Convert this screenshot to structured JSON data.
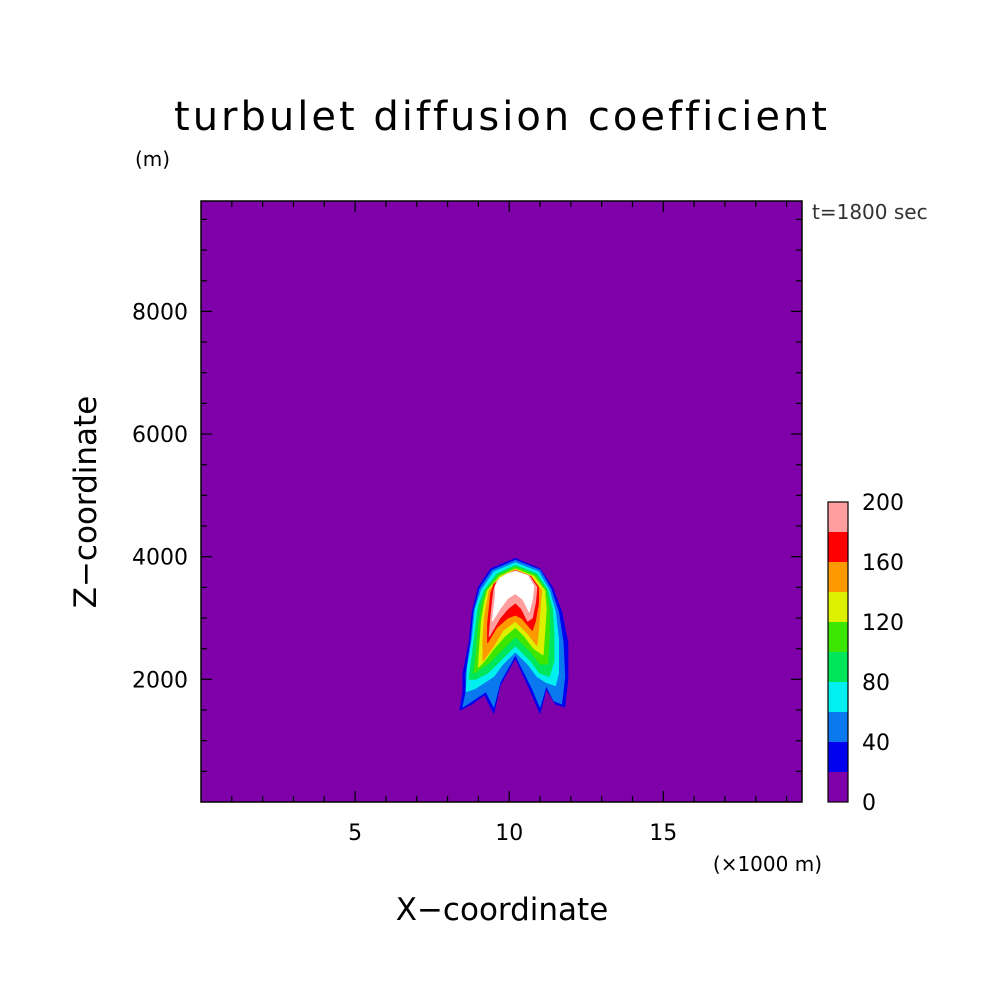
{
  "chart_data": {
    "type": "heatmap",
    "title": "turbulet diffusion coefficient",
    "time_label": "t=1800 sec",
    "xlabel": "X−coordinate",
    "xunit": "(×1000 m)",
    "ylabel": "Z−coordinate",
    "yunit": "(m)",
    "xlim": [
      0,
      19.5
    ],
    "ylim": [
      0,
      9800
    ],
    "x_ticks": [
      {
        "value": 5,
        "label": "5"
      },
      {
        "value": 10,
        "label": "10"
      },
      {
        "value": 15,
        "label": "15"
      }
    ],
    "y_ticks": [
      {
        "value": 2000,
        "label": "2000"
      },
      {
        "value": 4000,
        "label": "4000"
      },
      {
        "value": 6000,
        "label": "6000"
      },
      {
        "value": 8000,
        "label": "8000"
      }
    ],
    "colorbar": {
      "levels": [
        0,
        20,
        40,
        60,
        80,
        100,
        120,
        140,
        160,
        180,
        200
      ],
      "colors": [
        "#7f00a8",
        "#0000ee",
        "#0a78ee",
        "#00f0f0",
        "#00e65a",
        "#3ce600",
        "#dcf000",
        "#ff9900",
        "#ff0000",
        "#ff9e9e"
      ],
      "tick_labels": [
        {
          "value": 0,
          "label": "0"
        },
        {
          "value": 40,
          "label": "40"
        },
        {
          "value": 80,
          "label": "80"
        },
        {
          "value": 120,
          "label": "120"
        },
        {
          "value": 160,
          "label": "160"
        },
        {
          "value": 200,
          "label": "200"
        }
      ]
    },
    "above_max_color": "#ffffff",
    "background_level": 0,
    "contours": [
      {
        "level": 20,
        "color": "#0000ee",
        "points": [
          [
            8.4,
            1500
          ],
          [
            8.5,
            1800
          ],
          [
            8.5,
            2100
          ],
          [
            8.7,
            2600
          ],
          [
            8.8,
            3100
          ],
          [
            9.0,
            3500
          ],
          [
            9.4,
            3800
          ],
          [
            10.2,
            3970
          ],
          [
            11.0,
            3800
          ],
          [
            11.4,
            3500
          ],
          [
            11.7,
            3100
          ],
          [
            11.9,
            2600
          ],
          [
            11.9,
            2000
          ],
          [
            11.8,
            1550
          ],
          [
            11.5,
            1600
          ],
          [
            11.2,
            1850
          ],
          [
            11.0,
            1450
          ],
          [
            10.7,
            1800
          ],
          [
            10.2,
            2350
          ],
          [
            9.7,
            1900
          ],
          [
            9.5,
            1450
          ],
          [
            9.2,
            1750
          ],
          [
            8.8,
            1600
          ]
        ]
      },
      {
        "level": 40,
        "color": "#0a78ee",
        "points": [
          [
            8.5,
            1550
          ],
          [
            8.6,
            1800
          ],
          [
            8.6,
            2100
          ],
          [
            8.75,
            2600
          ],
          [
            8.85,
            3100
          ],
          [
            9.05,
            3480
          ],
          [
            9.45,
            3780
          ],
          [
            10.2,
            3940
          ],
          [
            11.0,
            3780
          ],
          [
            11.35,
            3480
          ],
          [
            11.6,
            3100
          ],
          [
            11.75,
            2600
          ],
          [
            11.8,
            2050
          ],
          [
            11.7,
            1600
          ],
          [
            11.45,
            1650
          ],
          [
            11.2,
            1900
          ],
          [
            11.0,
            1550
          ],
          [
            10.75,
            1850
          ],
          [
            10.2,
            2400
          ],
          [
            9.7,
            1950
          ],
          [
            9.5,
            1550
          ],
          [
            9.25,
            1800
          ],
          [
            8.8,
            1650
          ]
        ]
      },
      {
        "level": 60,
        "color": "#00f0f0",
        "points": [
          [
            8.6,
            1800
          ],
          [
            8.65,
            2200
          ],
          [
            8.8,
            2650
          ],
          [
            8.9,
            3150
          ],
          [
            9.1,
            3450
          ],
          [
            9.5,
            3750
          ],
          [
            10.2,
            3900
          ],
          [
            10.95,
            3750
          ],
          [
            11.3,
            3450
          ],
          [
            11.5,
            3100
          ],
          [
            11.6,
            2650
          ],
          [
            11.6,
            2100
          ],
          [
            11.5,
            1900
          ],
          [
            11.2,
            1950
          ],
          [
            10.9,
            2050
          ],
          [
            10.6,
            2250
          ],
          [
            10.2,
            2450
          ],
          [
            9.8,
            2250
          ],
          [
            9.5,
            2050
          ],
          [
            9.2,
            1950
          ],
          [
            8.9,
            1850
          ]
        ]
      },
      {
        "level": 80,
        "color": "#00e65a",
        "points": [
          [
            8.7,
            2000
          ],
          [
            8.8,
            2400
          ],
          [
            8.9,
            2800
          ],
          [
            9.0,
            3200
          ],
          [
            9.2,
            3450
          ],
          [
            9.6,
            3720
          ],
          [
            10.2,
            3860
          ],
          [
            10.9,
            3720
          ],
          [
            11.25,
            3450
          ],
          [
            11.4,
            3150
          ],
          [
            11.45,
            2750
          ],
          [
            11.45,
            2300
          ],
          [
            11.3,
            2050
          ],
          [
            11.0,
            2100
          ],
          [
            10.7,
            2300
          ],
          [
            10.2,
            2550
          ],
          [
            9.7,
            2300
          ],
          [
            9.3,
            2100
          ],
          [
            8.9,
            2000
          ]
        ]
      },
      {
        "level": 100,
        "color": "#3ce600",
        "points": [
          [
            8.85,
            2100
          ],
          [
            8.95,
            2500
          ],
          [
            9.0,
            2850
          ],
          [
            9.1,
            3200
          ],
          [
            9.25,
            3450
          ],
          [
            9.65,
            3700
          ],
          [
            10.2,
            3830
          ],
          [
            10.85,
            3700
          ],
          [
            11.2,
            3450
          ],
          [
            11.3,
            3150
          ],
          [
            11.3,
            2750
          ],
          [
            11.25,
            2250
          ],
          [
            11.0,
            2250
          ],
          [
            10.7,
            2450
          ],
          [
            10.2,
            2700
          ],
          [
            9.7,
            2450
          ],
          [
            9.3,
            2250
          ],
          [
            9.0,
            2150
          ]
        ]
      },
      {
        "level": 120,
        "color": "#dcf000",
        "points": [
          [
            9.0,
            2200
          ],
          [
            9.05,
            2600
          ],
          [
            9.1,
            2950
          ],
          [
            9.2,
            3250
          ],
          [
            9.3,
            3450
          ],
          [
            9.7,
            3680
          ],
          [
            10.2,
            3800
          ],
          [
            10.8,
            3680
          ],
          [
            11.15,
            3450
          ],
          [
            11.2,
            3150
          ],
          [
            11.15,
            2750
          ],
          [
            11.1,
            2400
          ],
          [
            10.8,
            2500
          ],
          [
            10.5,
            2700
          ],
          [
            10.2,
            2850
          ],
          [
            9.85,
            2700
          ],
          [
            9.5,
            2500
          ],
          [
            9.2,
            2300
          ]
        ]
      },
      {
        "level": 140,
        "color": "#ff9900",
        "points": [
          [
            9.15,
            2300
          ],
          [
            9.15,
            2650
          ],
          [
            9.2,
            3000
          ],
          [
            9.3,
            3300
          ],
          [
            9.35,
            3450
          ],
          [
            9.75,
            3650
          ],
          [
            10.2,
            3780
          ],
          [
            10.75,
            3650
          ],
          [
            11.05,
            3450
          ],
          [
            11.0,
            3150
          ],
          [
            10.95,
            2800
          ],
          [
            10.9,
            2550
          ],
          [
            10.6,
            2750
          ],
          [
            10.2,
            2950
          ],
          [
            9.8,
            2800
          ],
          [
            9.5,
            2550
          ]
        ]
      },
      {
        "level": 160,
        "color": "#ff0000",
        "points": [
          [
            9.3,
            2600
          ],
          [
            9.3,
            2900
          ],
          [
            9.35,
            3150
          ],
          [
            9.4,
            3400
          ],
          [
            9.5,
            3550
          ],
          [
            9.8,
            3680
          ],
          [
            10.2,
            3780
          ],
          [
            10.7,
            3680
          ],
          [
            10.95,
            3500
          ],
          [
            10.95,
            3250
          ],
          [
            10.85,
            2950
          ],
          [
            10.75,
            2800
          ],
          [
            10.4,
            3000
          ],
          [
            10.2,
            3050
          ],
          [
            9.95,
            3000
          ],
          [
            9.6,
            2850
          ]
        ]
      },
      {
        "level": 180,
        "color": "#ff9e9e",
        "points": [
          [
            9.35,
            2700
          ],
          [
            9.4,
            3000
          ],
          [
            9.45,
            3250
          ],
          [
            9.5,
            3450
          ],
          [
            9.6,
            3600
          ],
          [
            9.85,
            3700
          ],
          [
            10.2,
            3770
          ],
          [
            10.65,
            3690
          ],
          [
            10.9,
            3500
          ],
          [
            10.85,
            3250
          ],
          [
            10.75,
            3000
          ],
          [
            10.6,
            2950
          ],
          [
            10.4,
            3150
          ],
          [
            10.2,
            3250
          ],
          [
            9.95,
            3150
          ],
          [
            9.7,
            3000
          ]
        ]
      },
      {
        "level": 200,
        "color": "#ffffff",
        "points": [
          [
            9.45,
            2950
          ],
          [
            9.5,
            3150
          ],
          [
            9.55,
            3350
          ],
          [
            9.55,
            3520
          ],
          [
            9.7,
            3650
          ],
          [
            9.95,
            3720
          ],
          [
            10.2,
            3760
          ],
          [
            10.6,
            3690
          ],
          [
            10.8,
            3520
          ],
          [
            10.75,
            3300
          ],
          [
            10.65,
            3100
          ],
          [
            10.45,
            3300
          ],
          [
            10.2,
            3400
          ],
          [
            9.95,
            3320
          ],
          [
            9.7,
            3150
          ]
        ]
      }
    ]
  }
}
